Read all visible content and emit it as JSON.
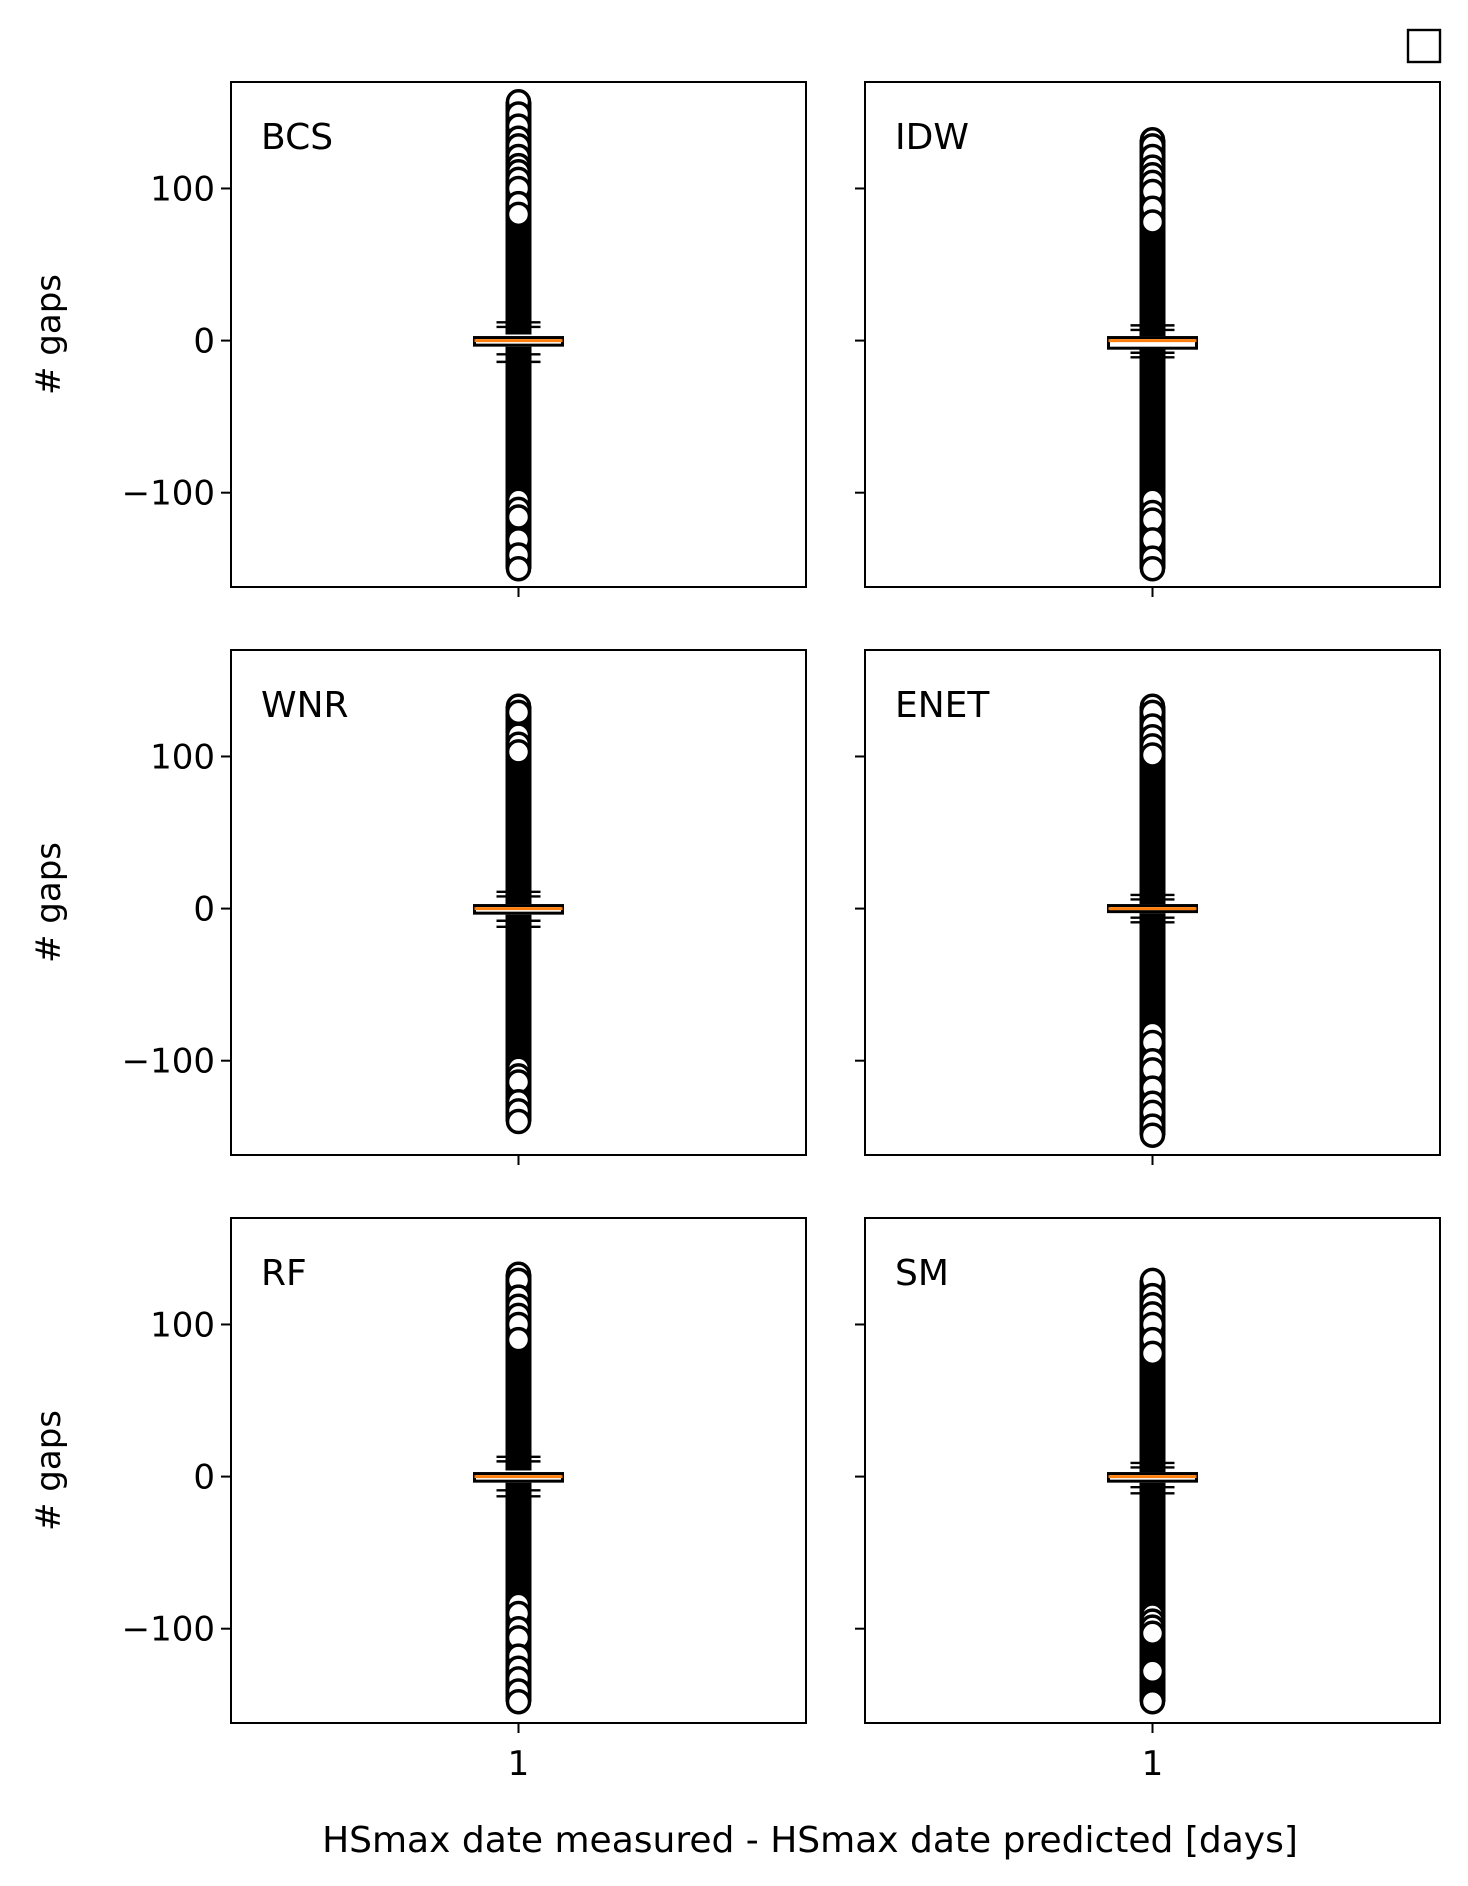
{
  "figure": {
    "xlabel": "HSmax date measured - HSmax date predicted [days]",
    "ylabel": "# gaps",
    "legend_placement": "top-right",
    "colors": {
      "box": "#000000",
      "median": "#ff7f0e",
      "flier": "#000000"
    }
  },
  "chart_data": [
    {
      "type": "box",
      "panel": "BCS",
      "categories": [
        "1"
      ],
      "yticks": [
        100,
        0,
        -100
      ],
      "ylim": [
        -162,
        170
      ],
      "box": {
        "q1": -3,
        "median": 0,
        "q3": 2,
        "whisker_low": -14,
        "whisker_high": 12
      },
      "caps": [
        12,
        9,
        -9,
        -14
      ],
      "fliers_range": [
        [
          -150,
          -4
        ],
        [
          4,
          157
        ]
      ],
      "fliers": [
        157,
        149,
        141,
        133,
        128,
        121,
        115,
        111,
        106,
        100,
        90,
        83,
        -105,
        -111,
        -116,
        -131,
        -141,
        -150
      ]
    },
    {
      "type": "box",
      "panel": "IDW",
      "categories": [
        "1"
      ],
      "yticks": [
        100,
        0,
        -100
      ],
      "ylim": [
        -162,
        170
      ],
      "box": {
        "q1": -5,
        "median": 0,
        "q3": 2,
        "whisker_low": -11,
        "whisker_high": 10
      },
      "caps": [
        10,
        7,
        -8,
        -11
      ],
      "fliers_range": [
        [
          -150,
          -5
        ],
        [
          3,
          132
        ]
      ],
      "fliers": [
        132,
        128,
        121,
        114,
        109,
        104,
        98,
        87,
        78,
        -105,
        -113,
        -118,
        -131,
        -143,
        -150
      ]
    },
    {
      "type": "box",
      "panel": "WNR",
      "categories": [
        "1"
      ],
      "yticks": [
        100,
        0,
        -100
      ],
      "ylim": [
        -162,
        170
      ],
      "box": {
        "q1": -3,
        "median": 0,
        "q3": 2,
        "whisker_low": -12,
        "whisker_high": 11
      },
      "caps": [
        11,
        8,
        -8,
        -12
      ],
      "fliers_range": [
        [
          -140,
          -4
        ],
        [
          3,
          133
        ]
      ],
      "fliers": [
        133,
        129,
        114,
        108,
        103,
        -105,
        -110,
        -114,
        -127,
        -133,
        -140
      ]
    },
    {
      "type": "box",
      "panel": "ENET",
      "categories": [
        "1"
      ],
      "yticks": [
        100,
        0,
        -100
      ],
      "ylim": [
        -162,
        170
      ],
      "box": {
        "q1": -2,
        "median": 0,
        "q3": 2,
        "whisker_low": -9,
        "whisker_high": 9
      },
      "caps": [
        9,
        6,
        -6,
        -9
      ],
      "fliers_range": [
        [
          -149,
          -3
        ],
        [
          3,
          133
        ]
      ],
      "fliers": [
        133,
        129,
        120,
        113,
        107,
        101,
        -82,
        -88,
        -100,
        -106,
        -118,
        -128,
        -134,
        -143,
        -149
      ]
    },
    {
      "type": "box",
      "panel": "RF",
      "categories": [
        "1"
      ],
      "yticks": [
        100,
        0,
        -100
      ],
      "ylim": [
        -162,
        170
      ],
      "box": {
        "q1": -3,
        "median": 0,
        "q3": 2,
        "whisker_low": -13,
        "whisker_high": 13
      },
      "caps": [
        13,
        10,
        -9,
        -13
      ],
      "fliers_range": [
        [
          -148,
          -4
        ],
        [
          4,
          133
        ]
      ],
      "fliers": [
        133,
        129,
        118,
        112,
        106,
        100,
        90,
        -84,
        -90,
        -100,
        -106,
        -118,
        -126,
        -133,
        -141,
        -148
      ]
    },
    {
      "type": "box",
      "panel": "SM",
      "categories": [
        "1"
      ],
      "yticks": [
        100,
        0,
        -100
      ],
      "ylim": [
        -162,
        170
      ],
      "box": {
        "q1": -3,
        "median": 0,
        "q3": 2,
        "whisker_low": -11,
        "whisker_high": 9
      },
      "caps": [
        9,
        6,
        -7,
        -11
      ],
      "fliers_range": [
        [
          -148,
          -4
        ],
        [
          3,
          129
        ]
      ],
      "fliers": [
        129,
        119,
        113,
        107,
        100,
        90,
        81,
        -91,
        -95,
        -99,
        -103,
        -128,
        -148
      ]
    }
  ]
}
